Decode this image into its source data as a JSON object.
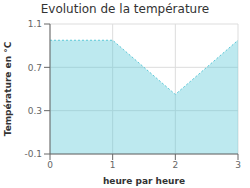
{
  "chart_data": {
    "type": "area",
    "title": "Evolution de la température",
    "xlabel": "heure par heure",
    "ylabel": "Température en °C",
    "x": [
      0,
      1,
      2,
      3
    ],
    "values": [
      0.95,
      0.95,
      0.45,
      0.95
    ],
    "xlim": [
      0,
      3
    ],
    "ylim": [
      -0.1,
      1.1
    ],
    "xticks": [
      0,
      1,
      2,
      3
    ],
    "yticks": [
      -0.1,
      0.3,
      0.7,
      1.1
    ],
    "color": "#5BC8D8",
    "line_style": "dotted",
    "grid": true
  }
}
